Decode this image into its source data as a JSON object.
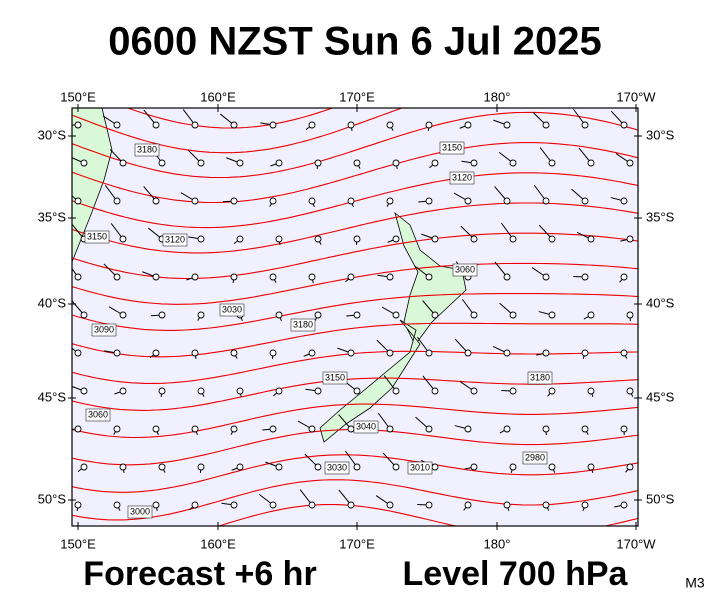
{
  "header": {
    "title": "0600 NZST Sun 6 Jul 2025"
  },
  "map": {
    "lon_labels": [
      "150°E",
      "160°E",
      "170°E",
      "180°",
      "170°W"
    ],
    "lat_labels": [
      "30°S",
      "35°S",
      "40°S",
      "45°S",
      "50°S"
    ],
    "contour_labels": [
      "3180",
      "3150",
      "3120",
      "3090",
      "3060",
      "3030",
      "3000",
      "3180",
      "3150",
      "3040",
      "3030",
      "3010",
      "2980",
      "3060",
      "3150",
      "3120",
      "3180"
    ]
  },
  "footer": {
    "forecast": "Forecast +6 hr",
    "level": "Level 700 hPa",
    "model": "M3"
  }
}
